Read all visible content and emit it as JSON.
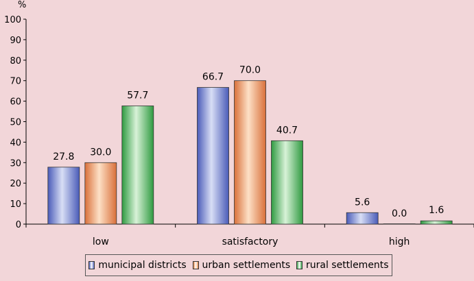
{
  "chart_data": {
    "type": "bar",
    "ylabel": "%",
    "ylim": [
      0,
      100
    ],
    "yticks": [
      0,
      10,
      20,
      30,
      40,
      50,
      60,
      70,
      80,
      90,
      100
    ],
    "categories": [
      "low",
      "satisfactory",
      "high"
    ],
    "series": [
      {
        "name": "municipal districts",
        "values": [
          27.8,
          66.7,
          5.6
        ],
        "labels": [
          "27.8",
          "66.7",
          "5.6"
        ],
        "color": "#5a6bc4"
      },
      {
        "name": "urban settlements",
        "values": [
          30.0,
          70.0,
          0.0
        ],
        "labels": [
          "30.0",
          "70.0",
          "0.0"
        ],
        "color": "#e88a4a"
      },
      {
        "name": "rural settlements",
        "values": [
          57.7,
          40.7,
          1.6
        ],
        "labels": [
          "57.7",
          "40.7",
          "1.6"
        ],
        "color": "#3ea84e"
      }
    ],
    "grid": false,
    "legend_position": "bottom"
  }
}
